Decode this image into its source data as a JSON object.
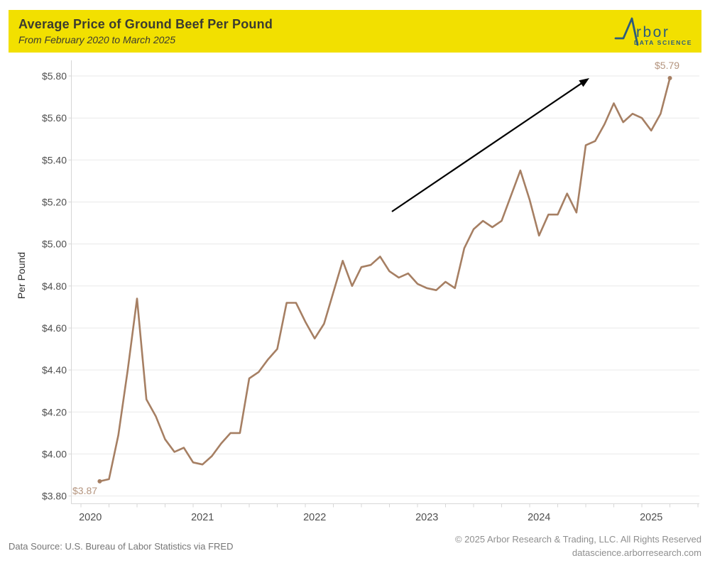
{
  "header": {
    "title": "Average Price of Ground Beef Per Pound",
    "subtitle": "From February 2020 to March 2025",
    "background_color": "#f2e000",
    "logo": {
      "brand": "Arbor",
      "brand_text_after_icon": "rbor",
      "tagline": "DATA SCIENCE",
      "color": "#2b5c7d"
    }
  },
  "footer": {
    "source": "Data Source: U.S. Bureau of Labor Statistics via FRED",
    "copyright": "© 2025 Arbor Research & Trading, LLC. All Rights Reserved",
    "website": "datascience.arborresearch.com"
  },
  "chart_data": {
    "type": "line",
    "title": "Average Price of Ground Beef Per Pound",
    "xlabel": "",
    "ylabel": "Per Pound",
    "ylim": [
      3.76,
      5.88
    ],
    "grid": true,
    "legend": false,
    "line_color": "#a67f63",
    "x_tick_unit": "year",
    "minor_x_ticks": "quarterly",
    "y_ticks": [
      {
        "value": 3.8,
        "label": "$3.80"
      },
      {
        "value": 4.0,
        "label": "$4.00"
      },
      {
        "value": 4.2,
        "label": "$4.20"
      },
      {
        "value": 4.4,
        "label": "$4.40"
      },
      {
        "value": 4.6,
        "label": "$4.60"
      },
      {
        "value": 4.8,
        "label": "$4.80"
      },
      {
        "value": 5.0,
        "label": "$5.00"
      },
      {
        "value": 5.2,
        "label": "$5.20"
      },
      {
        "value": 5.4,
        "label": "$5.40"
      },
      {
        "value": 5.6,
        "label": "$5.60"
      },
      {
        "value": 5.8,
        "label": "$5.80"
      }
    ],
    "x_ticks": [
      {
        "year": 2020,
        "label": "2020"
      },
      {
        "year": 2021,
        "label": "2021"
      },
      {
        "year": 2022,
        "label": "2022"
      },
      {
        "year": 2023,
        "label": "2023"
      },
      {
        "year": 2024,
        "label": "2024"
      },
      {
        "year": 2025,
        "label": "2025"
      }
    ],
    "points": [
      [
        "2020-02",
        3.87
      ],
      [
        "2020-03",
        3.88
      ],
      [
        "2020-04",
        4.09
      ],
      [
        "2020-05",
        4.4
      ],
      [
        "2020-06",
        4.74
      ],
      [
        "2020-07",
        4.26
      ],
      [
        "2020-08",
        4.18
      ],
      [
        "2020-09",
        4.07
      ],
      [
        "2020-10",
        4.01
      ],
      [
        "2020-11",
        4.03
      ],
      [
        "2020-12",
        3.96
      ],
      [
        "2021-01",
        3.95
      ],
      [
        "2021-02",
        3.99
      ],
      [
        "2021-03",
        4.05
      ],
      [
        "2021-04",
        4.1
      ],
      [
        "2021-05",
        4.1
      ],
      [
        "2021-06",
        4.36
      ],
      [
        "2021-07",
        4.39
      ],
      [
        "2021-08",
        4.45
      ],
      [
        "2021-09",
        4.5
      ],
      [
        "2021-10",
        4.72
      ],
      [
        "2021-11",
        4.72
      ],
      [
        "2021-12",
        4.63
      ],
      [
        "2022-01",
        4.55
      ],
      [
        "2022-02",
        4.62
      ],
      [
        "2022-03",
        4.77
      ],
      [
        "2022-04",
        4.92
      ],
      [
        "2022-05",
        4.8
      ],
      [
        "2022-06",
        4.89
      ],
      [
        "2022-07",
        4.9
      ],
      [
        "2022-08",
        4.94
      ],
      [
        "2022-09",
        4.87
      ],
      [
        "2022-10",
        4.84
      ],
      [
        "2022-11",
        4.86
      ],
      [
        "2022-12",
        4.81
      ],
      [
        "2023-01",
        4.79
      ],
      [
        "2023-02",
        4.78
      ],
      [
        "2023-03",
        4.82
      ],
      [
        "2023-04",
        4.79
      ],
      [
        "2023-05",
        4.98
      ],
      [
        "2023-06",
        5.07
      ],
      [
        "2023-07",
        5.11
      ],
      [
        "2023-08",
        5.08
      ],
      [
        "2023-09",
        5.11
      ],
      [
        "2023-10",
        5.23
      ],
      [
        "2023-11",
        5.35
      ],
      [
        "2023-12",
        5.21
      ],
      [
        "2024-01",
        5.04
      ],
      [
        "2024-02",
        5.14
      ],
      [
        "2024-03",
        5.14
      ],
      [
        "2024-04",
        5.24
      ],
      [
        "2024-05",
        5.15
      ],
      [
        "2024-06",
        5.47
      ],
      [
        "2024-07",
        5.49
      ],
      [
        "2024-08",
        5.57
      ],
      [
        "2024-09",
        5.67
      ],
      [
        "2024-10",
        5.58
      ],
      [
        "2024-11",
        5.62
      ],
      [
        "2024-12",
        5.6
      ],
      [
        "2025-01",
        5.54
      ],
      [
        "2025-02",
        5.62
      ],
      [
        "2025-03",
        5.79
      ]
    ],
    "annotations": {
      "start_label": "$3.87",
      "end_label": "$5.79",
      "trend_arrow": "up-right"
    }
  }
}
